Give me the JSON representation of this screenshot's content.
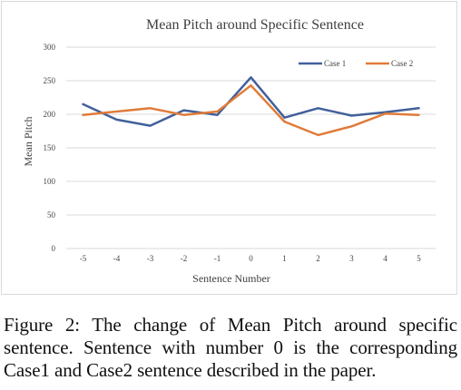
{
  "chart_data": {
    "type": "line",
    "title": "Mean Pitch around Specific Sentence",
    "xlabel": "Sentence Number",
    "ylabel": "Mean Pitch",
    "categories": [
      "-5",
      "-4",
      "-3",
      "-2",
      "-1",
      "0",
      "1",
      "2",
      "3",
      "4",
      "5"
    ],
    "x": [
      -5,
      -4,
      -3,
      -2,
      -1,
      0,
      1,
      2,
      3,
      4,
      5
    ],
    "ylim": [
      0,
      300
    ],
    "yticks": [
      "0",
      "50",
      "100",
      "150",
      "200",
      "250",
      "300"
    ],
    "grid": true,
    "legend_position": "top-right",
    "series": [
      {
        "name": "Case 1",
        "color": "#41609a",
        "values": [
          215,
          192,
          183,
          206,
          199,
          255,
          195,
          209,
          198,
          203,
          209
        ]
      },
      {
        "name": "Case 2",
        "color": "#e07b39",
        "values": [
          199,
          204,
          209,
          199,
          204,
          243,
          189,
          169,
          182,
          201,
          199
        ]
      }
    ]
  },
  "caption": "Figure 2: The change of Mean Pitch around specific sentence. Sentence with number 0 is the corresponding Case1 and Case2 sentence described in the paper."
}
